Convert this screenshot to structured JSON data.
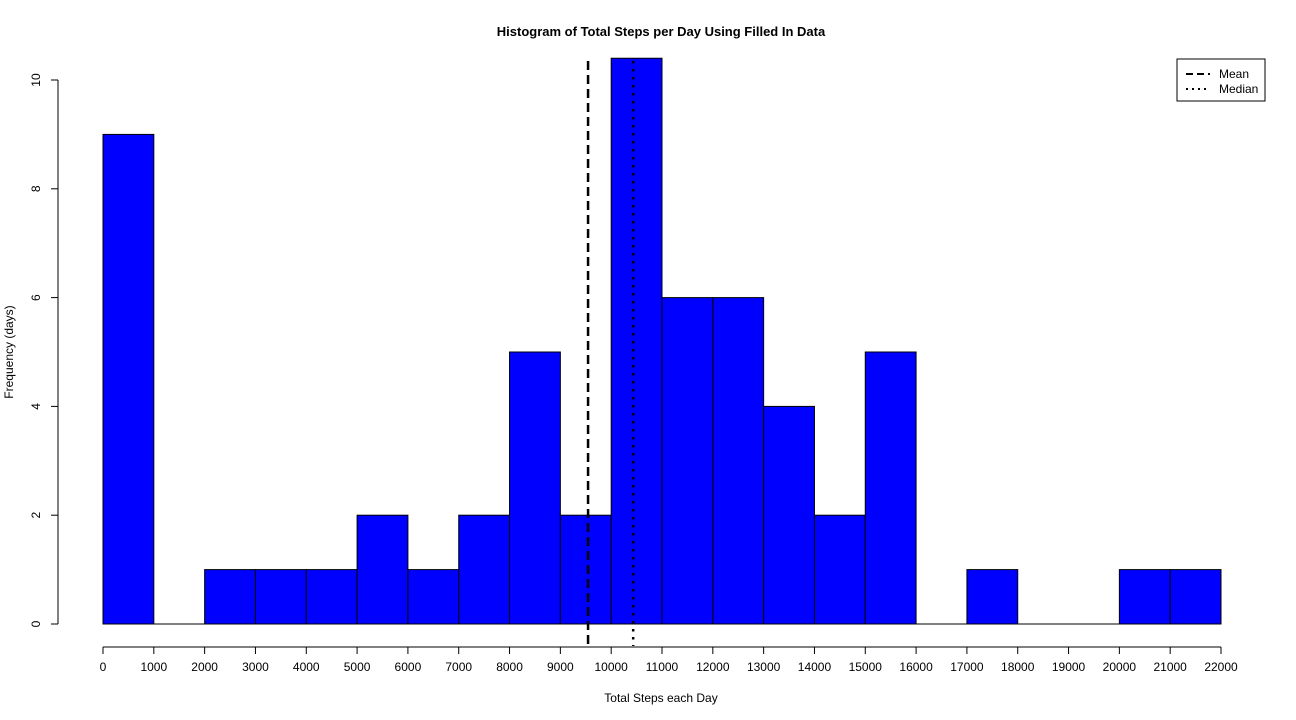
{
  "chart_data": {
    "type": "bar",
    "subtype": "histogram",
    "title": "Histogram of Total Steps per Day Using Filled In Data",
    "xlabel": "Total Steps each Day",
    "ylabel": "Frequency (days)",
    "bin_width": 1000,
    "bin_edges": [
      0,
      1000,
      2000,
      3000,
      4000,
      5000,
      6000,
      7000,
      8000,
      9000,
      10000,
      11000,
      12000,
      13000,
      14000,
      15000,
      16000,
      17000,
      18000,
      19000,
      20000,
      21000,
      22000
    ],
    "values": [
      9,
      0,
      1,
      1,
      1,
      2,
      1,
      2,
      5,
      2,
      11,
      6,
      6,
      4,
      2,
      5,
      0,
      1,
      0,
      0,
      1,
      1
    ],
    "xlim": [
      0,
      22000
    ],
    "ylim": [
      0,
      10.4
    ],
    "x_ticks": [
      0,
      1000,
      2000,
      3000,
      4000,
      5000,
      6000,
      7000,
      8000,
      9000,
      10000,
      11000,
      12000,
      13000,
      14000,
      15000,
      16000,
      17000,
      18000,
      19000,
      20000,
      21000,
      22000
    ],
    "y_ticks": [
      0,
      2,
      4,
      6,
      8,
      10
    ],
    "bar_color": "#0000FF",
    "bar_border_color": "#000000",
    "reference_lines": [
      {
        "name": "Mean",
        "x": 9545,
        "style": "dashed"
      },
      {
        "name": "Median",
        "x": 10433,
        "style": "dotted"
      }
    ],
    "legend": {
      "position": "top-right",
      "entries": [
        {
          "label": "Mean",
          "style": "dashed"
        },
        {
          "label": "Median",
          "style": "dotted"
        }
      ]
    },
    "grid": false
  }
}
